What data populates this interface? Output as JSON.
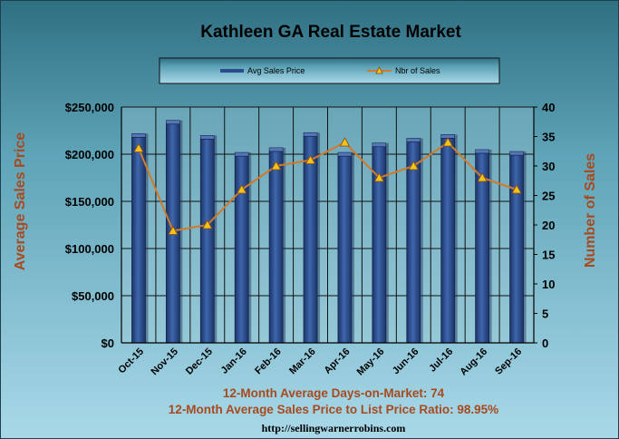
{
  "chart_data": {
    "type": "bar",
    "title": "Kathleen GA Real Estate Market",
    "categories": [
      "Oct-15",
      "Nov-15",
      "Dec-15",
      "Jan-16",
      "Feb-16",
      "Mar-16",
      "Apr-16",
      "May-16",
      "Jun-16",
      "Jul-16",
      "Aug-16",
      "Sep-16"
    ],
    "series": [
      {
        "name": "Avg Sales Price",
        "type": "bar",
        "axis": "left",
        "values": [
          218000,
          232000,
          216000,
          198000,
          203000,
          219000,
          198000,
          208000,
          213000,
          217000,
          201000,
          199000
        ]
      },
      {
        "name": "Nbr of Sales",
        "type": "line",
        "axis": "right",
        "values": [
          33,
          19,
          20,
          26,
          30,
          31,
          34,
          28,
          30,
          34,
          28,
          26
        ]
      }
    ],
    "ylabel": "Average Sales Price",
    "y2label": "Number of Sales",
    "ylim": [
      0,
      250000
    ],
    "y2lim": [
      0,
      40
    ],
    "yticks": [
      "$0",
      "$50,000",
      "$100,000",
      "$150,000",
      "$200,000",
      "$250,000"
    ],
    "y2ticks": [
      "0",
      "5",
      "10",
      "15",
      "20",
      "25",
      "30",
      "35",
      "40"
    ],
    "grid": true,
    "legend_position": "top"
  },
  "footer": {
    "line1": "12-Month Average Days-on-Market: 74",
    "line2": "12-Month Average Sales Price to List Price Ratio: 98.95%",
    "url": "http://sellingwarnerrobins.com"
  },
  "colors": {
    "bar": "#2b4d8c",
    "line": "#d07a2a",
    "marker": "#f2c318",
    "label_accent": "#a84a1e",
    "plot_bg": "#7fb1c0",
    "grid": "#111111"
  }
}
